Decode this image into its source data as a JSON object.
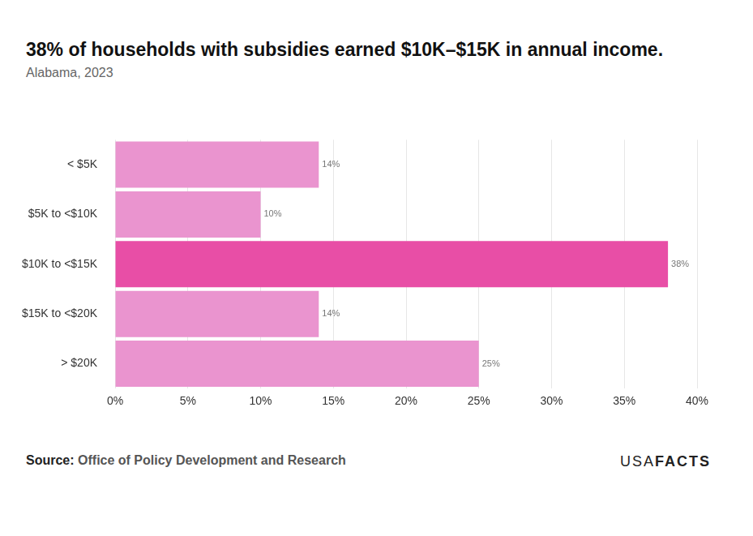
{
  "chart_data": {
    "type": "bar",
    "title": "38% of households with subsidies earned $10K–$15K in annual income.",
    "subtitle": "Alabama, 2023",
    "source_label": "Source:",
    "source": "Office of Policy Development and Research",
    "logo": {
      "light": "USA",
      "bold": "FACTS"
    },
    "orientation": "horizontal",
    "categories": [
      "< $5K",
      "$5K to <$10K",
      "$10K to <$15K",
      "$15K to <$20K",
      "> $20K"
    ],
    "values": [
      14,
      10,
      38,
      14,
      25
    ],
    "value_labels": [
      "14%",
      "10%",
      "38%",
      "14%",
      "25%"
    ],
    "colors": [
      "#ea94cf",
      "#ea94cf",
      "#e84ea6",
      "#ea94cf",
      "#ea94cf"
    ],
    "xlim": [
      0,
      40
    ],
    "xticks": [
      {
        "value": 0,
        "label": "0%"
      },
      {
        "value": 5,
        "label": "5%"
      },
      {
        "value": 10,
        "label": "10%"
      },
      {
        "value": 15,
        "label": "15%"
      },
      {
        "value": 20,
        "label": "20%"
      },
      {
        "value": 25,
        "label": "25%"
      },
      {
        "value": 30,
        "label": "30%"
      },
      {
        "value": 35,
        "label": "35%"
      },
      {
        "value": 40,
        "label": "40%"
      }
    ],
    "grid": true,
    "data_labels": true
  }
}
